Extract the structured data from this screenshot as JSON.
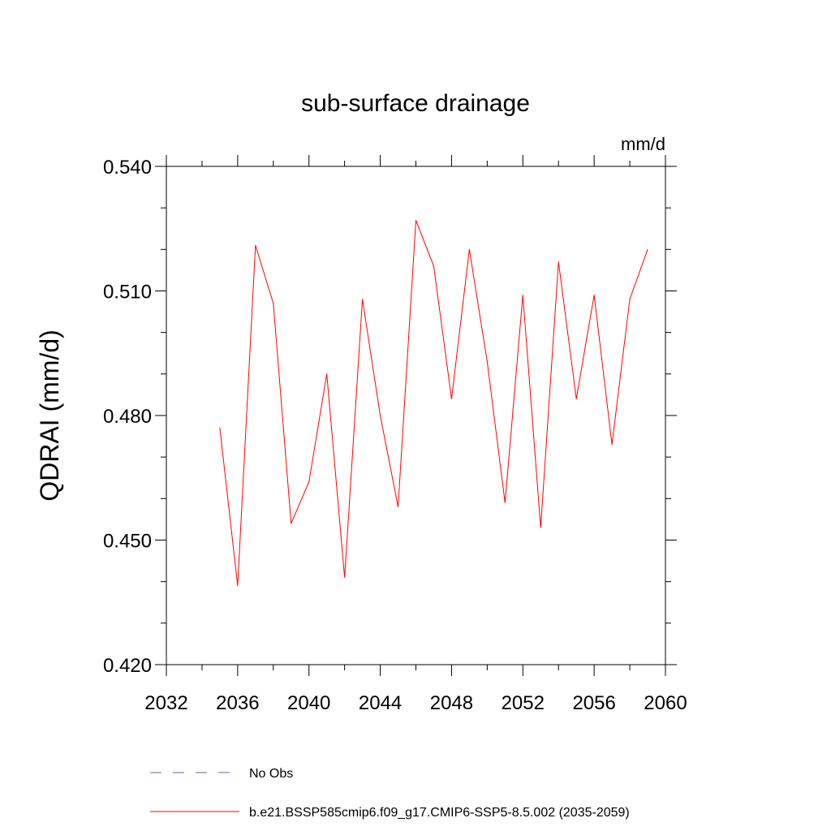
{
  "chart_data": {
    "type": "line",
    "title": "sub-surface drainage",
    "units": "mm/d",
    "ylabel": "QDRAI  (mm/d)",
    "xlabel": "",
    "xlim": [
      2032,
      2060
    ],
    "ylim": [
      0.42,
      0.54
    ],
    "x_ticks": [
      2032,
      2036,
      2040,
      2044,
      2048,
      2052,
      2056,
      2060
    ],
    "x_tick_labels": [
      "2032",
      "2036",
      "2040",
      "2044",
      "2048",
      "2052",
      "2056",
      "2060"
    ],
    "y_ticks": [
      0.42,
      0.45,
      0.48,
      0.51,
      0.54
    ],
    "y_tick_labels": [
      "0.420",
      "0.450",
      "0.480",
      "0.510",
      "0.540"
    ],
    "y_minor_step": 0.01,
    "x_minor_step": 2,
    "grid": false,
    "series": [
      {
        "name": "b.e21.BSSP585cmip6.f09_g17.CMIP6-SSP5-8.5.002 (2035-2059)",
        "color": "#ff0000",
        "style": "solid",
        "x": [
          2035,
          2036,
          2037,
          2038,
          2039,
          2040,
          2041,
          2042,
          2043,
          2044,
          2045,
          2046,
          2047,
          2048,
          2049,
          2050,
          2051,
          2052,
          2053,
          2054,
          2055,
          2056,
          2057,
          2058,
          2059
        ],
        "y": [
          0.477,
          0.439,
          0.521,
          0.507,
          0.454,
          0.464,
          0.49,
          0.441,
          0.508,
          0.48,
          0.458,
          0.527,
          0.516,
          0.484,
          0.52,
          0.493,
          0.459,
          0.509,
          0.453,
          0.517,
          0.484,
          0.509,
          0.473,
          0.508,
          0.52
        ]
      }
    ],
    "legend": {
      "placement": "bottom",
      "entries": [
        {
          "label": "No Obs",
          "color": "#6b5fb5",
          "style": "dashed"
        },
        {
          "label": "b.e21.BSSP585cmip6.f09_g17.CMIP6-SSP5-8.5.002 (2035-2059)",
          "color": "#ff0000",
          "style": "solid"
        }
      ]
    }
  }
}
